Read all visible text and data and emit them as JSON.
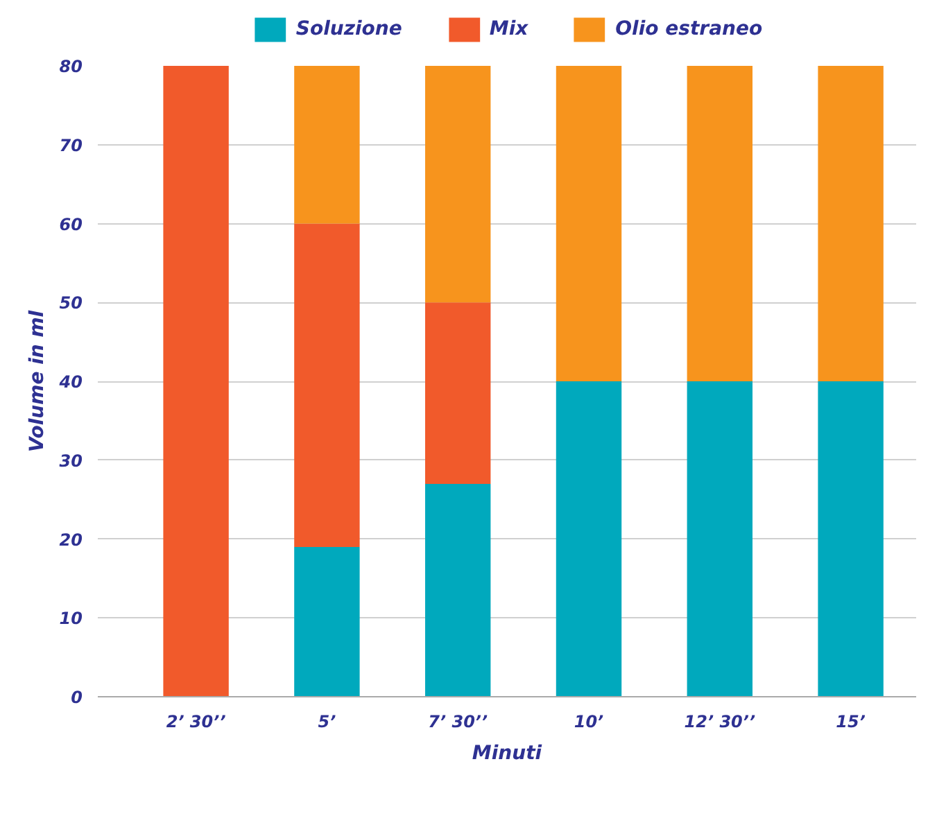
{
  "chart_data": {
    "type": "bar",
    "stacked": true,
    "xlabel": "Minuti",
    "ylabel": "Volume in ml",
    "categories": [
      "2’ 30’’",
      "5’",
      "7’ 30’’",
      "10’",
      "12’ 30’’",
      "15’"
    ],
    "series": [
      {
        "name": "Soluzione",
        "color": "#00a9bd",
        "values": [
          0,
          19,
          27,
          40,
          40,
          40
        ]
      },
      {
        "name": "Mix",
        "color": "#f15a2b",
        "values": [
          80,
          41,
          23,
          0,
          0,
          0
        ]
      },
      {
        "name": "Olio estraneo",
        "color": "#f7941d",
        "values": [
          0,
          20,
          30,
          40,
          40,
          40
        ]
      }
    ],
    "ylim": [
      0,
      80
    ],
    "yticks": [
      0,
      10,
      20,
      30,
      40,
      50,
      60,
      70,
      80
    ],
    "grid": "y",
    "legend": "top"
  }
}
